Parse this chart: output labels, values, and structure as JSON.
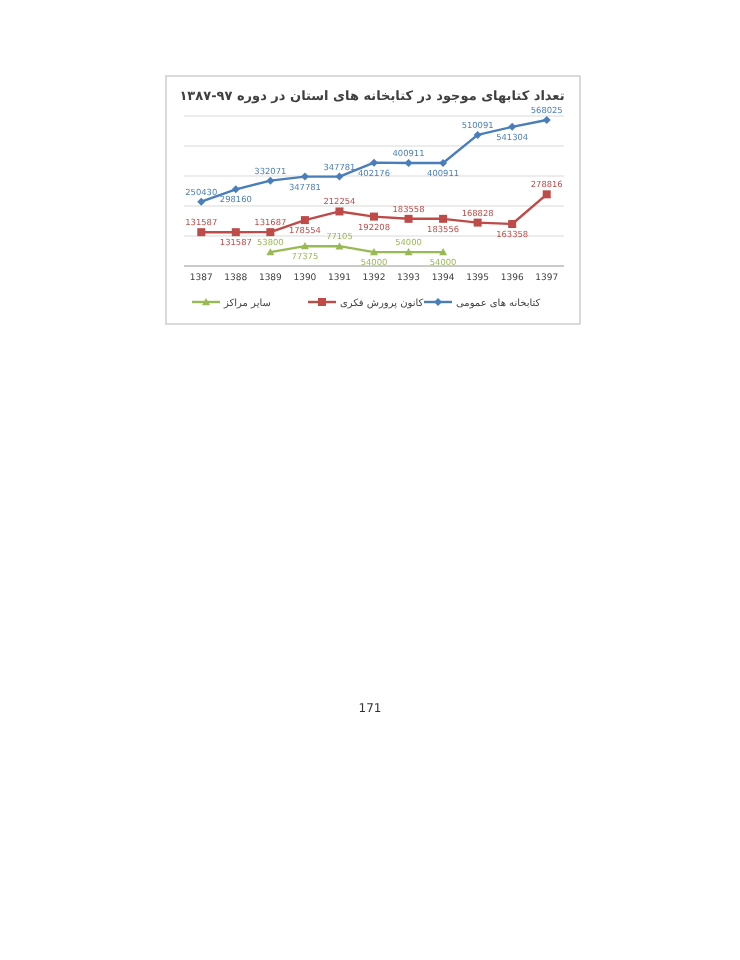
{
  "chart_data": {
    "type": "line",
    "title": "تعداد کتابهای موجود در کتابخانه های استان در دوره ۹۷-۱۳۸۷",
    "categories": [
      "1387",
      "1388",
      "1389",
      "1390",
      "1391",
      "1392",
      "1393",
      "1394",
      "1395",
      "1396",
      "1397"
    ],
    "series": [
      {
        "name": "کتابخانه های عمومی",
        "color": "#4a7ebb",
        "marker": "diamond",
        "values": [
          250430,
          298160,
          332071,
          347781,
          347781,
          402176,
          400911,
          400911,
          510091,
          541304,
          568025
        ],
        "value_labels": [
          "250430",
          "298160",
          "332071",
          "347781",
          "347781",
          "402176",
          "400911",
          "400911",
          "510091",
          "541304",
          "568025"
        ]
      },
      {
        "name": "کانون پرورش فکری",
        "color": "#be4b48",
        "marker": "square",
        "values": [
          131587,
          131587,
          131687,
          178554,
          212254,
          192208,
          183558,
          183556,
          168828,
          163358,
          278816
        ],
        "value_labels": [
          "131587",
          "131587",
          "131687",
          "178554",
          "212254",
          "192208",
          "183558",
          "183556",
          "168828",
          "163358",
          "278816"
        ]
      },
      {
        "name": "سایر مراکز",
        "color": "#98b954",
        "marker": "triangle",
        "values": [
          null,
          null,
          53800,
          77375,
          77105,
          54000,
          54000,
          54000,
          null,
          null,
          null
        ],
        "value_labels": [
          null,
          null,
          "53800",
          "77375",
          "77105",
          "54000",
          "54000",
          "54000",
          null,
          null,
          null
        ]
      }
    ],
    "grid": "y",
    "legend": "bottom",
    "annotations": [
      "171"
    ]
  }
}
